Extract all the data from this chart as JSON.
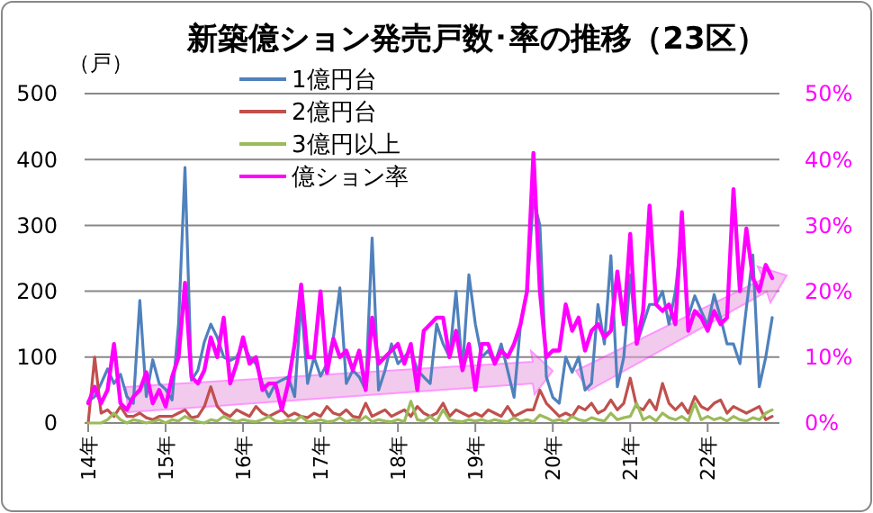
{
  "chart_data": {
    "type": "line",
    "title": "新築億ション発売戸数･率の推移（23区）",
    "ylabel": "（戸）",
    "categories": [
      "14年",
      null,
      null,
      null,
      null,
      null,
      null,
      null,
      null,
      null,
      null,
      null,
      "15年",
      null,
      null,
      null,
      null,
      null,
      null,
      null,
      null,
      null,
      null,
      null,
      "16年",
      null,
      null,
      null,
      null,
      null,
      null,
      null,
      null,
      null,
      null,
      null,
      "17年",
      null,
      null,
      null,
      null,
      null,
      null,
      null,
      null,
      null,
      null,
      null,
      "18年",
      null,
      null,
      null,
      null,
      null,
      null,
      null,
      null,
      null,
      null,
      null,
      "19年",
      null,
      null,
      null,
      null,
      null,
      null,
      null,
      null,
      null,
      null,
      null,
      "20年",
      null,
      null,
      null,
      null,
      null,
      null,
      null,
      null,
      null,
      null,
      null,
      "21年",
      null,
      null,
      null,
      null,
      null,
      null,
      null,
      null,
      null,
      null,
      null,
      "22年",
      null,
      null,
      null,
      null,
      null,
      null,
      null,
      null,
      null,
      null
    ],
    "series": [
      {
        "name": "1億円台",
        "color": "#4f81bd",
        "values": [
          33,
          40,
          60,
          82,
          60,
          74,
          40,
          30,
          186,
          40,
          96,
          60,
          51,
          35,
          150,
          388,
          65,
          80,
          123,
          150,
          130,
          100,
          95,
          100,
          120,
          100,
          90,
          60,
          40,
          60,
          65,
          70,
          40,
          186,
          60,
          100,
          71,
          90,
          130,
          205,
          60,
          80,
          70,
          50,
          281,
          50,
          80,
          120,
          90,
          100,
          112,
          80,
          70,
          60,
          150,
          120,
          100,
          200,
          80,
          225,
          150,
          100,
          110,
          90,
          120,
          80,
          39,
          150,
          200,
          340,
          300,
          70,
          39,
          30,
          100,
          77,
          100,
          50,
          60,
          180,
          120,
          254,
          55,
          100,
          225,
          120,
          150,
          180,
          180,
          200,
          150,
          200,
          290,
          162,
          193,
          170,
          148,
          195,
          160,
          120,
          120,
          90,
          175,
          255,
          55,
          100,
          160
        ]
      },
      {
        "name": "2億円台",
        "color": "#c0504d",
        "values": [
          0,
          100,
          15,
          20,
          10,
          25,
          10,
          10,
          15,
          8,
          5,
          10,
          10,
          10,
          15,
          20,
          8,
          10,
          25,
          55,
          25,
          15,
          10,
          20,
          15,
          10,
          25,
          15,
          10,
          15,
          20,
          10,
          15,
          10,
          8,
          15,
          10,
          25,
          15,
          12,
          20,
          10,
          8,
          30,
          10,
          15,
          20,
          10,
          15,
          20,
          10,
          25,
          15,
          10,
          15,
          30,
          10,
          20,
          15,
          10,
          15,
          10,
          20,
          15,
          10,
          25,
          10,
          15,
          20,
          20,
          50,
          30,
          20,
          10,
          15,
          10,
          25,
          20,
          30,
          15,
          20,
          35,
          20,
          30,
          68,
          25,
          20,
          35,
          20,
          60,
          30,
          20,
          30,
          15,
          40,
          25,
          20,
          30,
          35,
          15,
          25,
          20,
          15,
          20,
          25,
          5,
          10
        ]
      },
      {
        "name": "3億円以上",
        "color": "#9bbb59",
        "values": [
          0,
          0,
          0,
          5,
          15,
          5,
          0,
          5,
          3,
          0,
          2,
          5,
          0,
          5,
          3,
          10,
          5,
          2,
          0,
          5,
          3,
          10,
          5,
          2,
          5,
          3,
          2,
          5,
          10,
          3,
          2,
          5,
          3,
          10,
          2,
          3,
          5,
          2,
          3,
          8,
          2,
          5,
          3,
          10,
          2,
          5,
          3,
          2,
          5,
          2,
          33,
          5,
          3,
          10,
          2,
          20,
          5,
          3,
          2,
          5,
          3,
          5,
          2,
          5,
          3,
          2,
          8,
          3,
          5,
          2,
          12,
          8,
          3,
          5,
          2,
          10,
          5,
          3,
          8,
          5,
          3,
          15,
          5,
          8,
          10,
          30,
          5,
          10,
          3,
          15,
          8,
          5,
          10,
          3,
          30,
          5,
          10,
          5,
          8,
          3,
          10,
          5,
          3,
          8,
          5,
          15,
          20
        ]
      },
      {
        "name": "億ション率",
        "color": "#ff00ff",
        "axis": "y2",
        "values": [
          3,
          5.5,
          3,
          5,
          12,
          3,
          2,
          4,
          5,
          7.7,
          3,
          5,
          2.5,
          7,
          10,
          21.3,
          7,
          6,
          8,
          13,
          10,
          16,
          6,
          9,
          13,
          9,
          10,
          5,
          6,
          6,
          2,
          6,
          12,
          21,
          10,
          10,
          20,
          7.6,
          12.8,
          10,
          11,
          8,
          11,
          5,
          16,
          9,
          10,
          11,
          12,
          9,
          12,
          5,
          14,
          15,
          16,
          16,
          10,
          14,
          8,
          12,
          5,
          12,
          12,
          9,
          11,
          10,
          12,
          15,
          20,
          41,
          20,
          10,
          11,
          11,
          18,
          14,
          16,
          11,
          14,
          15,
          13,
          14,
          23,
          15,
          28.7,
          12,
          17,
          33,
          18,
          17,
          18,
          15,
          32,
          14,
          17,
          16,
          14,
          17,
          15,
          16,
          35.5,
          20,
          29.5,
          22,
          20,
          24,
          22
        ]
      }
    ],
    "ylim": [
      0,
      500
    ],
    "yticks": [
      0,
      100,
      200,
      300,
      400,
      500
    ],
    "y2lim": [
      0,
      50
    ],
    "y2ticks": [
      {
        "value": 0,
        "label": "0%"
      },
      {
        "value": 10,
        "label": "10%"
      },
      {
        "value": 20,
        "label": "20%"
      },
      {
        "value": 30,
        "label": "30%"
      },
      {
        "value": 40,
        "label": "40%"
      },
      {
        "value": 50,
        "label": "50%"
      }
    ],
    "grid": "y",
    "legend": "top left"
  }
}
